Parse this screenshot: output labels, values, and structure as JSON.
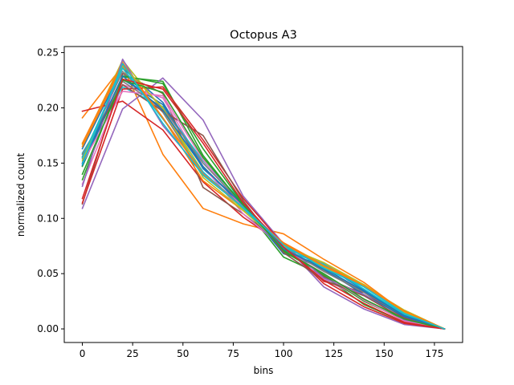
{
  "chart_data": {
    "type": "line",
    "title": "Octopus A3",
    "xlabel": "bins",
    "ylabel": "normalized count",
    "xlim": [
      -9,
      189
    ],
    "ylim": [
      -0.0123,
      0.2555
    ],
    "xticks": [
      0,
      25,
      50,
      75,
      100,
      125,
      150,
      175
    ],
    "xtick_labels": [
      "0",
      "25",
      "50",
      "75",
      "100",
      "125",
      "150",
      "175"
    ],
    "yticks": [
      0.0,
      0.05,
      0.1,
      0.15,
      0.2,
      0.25
    ],
    "ytick_labels": [
      "0.00",
      "0.05",
      "0.10",
      "0.15",
      "0.20",
      "0.25"
    ],
    "grid": false,
    "x": [
      0,
      20,
      40,
      60,
      80,
      100,
      120,
      140,
      160,
      180
    ],
    "series": [
      {
        "color": "#1f77b4",
        "values": [
          0.163,
          0.236,
          0.205,
          0.145,
          0.112,
          0.068,
          0.058,
          0.035,
          0.012,
          0.0
        ]
      },
      {
        "color": "#ff7f0e",
        "values": [
          0.191,
          0.238,
          0.158,
          0.109,
          0.095,
          0.086,
          0.063,
          0.042,
          0.015,
          0.0
        ]
      },
      {
        "color": "#2ca02c",
        "values": [
          0.147,
          0.228,
          0.224,
          0.157,
          0.111,
          0.065,
          0.048,
          0.022,
          0.006,
          0.0
        ]
      },
      {
        "color": "#d62728",
        "values": [
          0.197,
          0.206,
          0.18,
          0.133,
          0.101,
          0.076,
          0.043,
          0.033,
          0.01,
          0.0
        ]
      },
      {
        "color": "#9467bd",
        "values": [
          0.109,
          0.199,
          0.227,
          0.189,
          0.12,
          0.077,
          0.038,
          0.018,
          0.004,
          0.0
        ]
      },
      {
        "color": "#8c564b",
        "values": [
          0.113,
          0.231,
          0.213,
          0.128,
          0.104,
          0.076,
          0.047,
          0.031,
          0.008,
          0.0
        ]
      },
      {
        "color": "#e377c2",
        "values": [
          0.131,
          0.221,
          0.209,
          0.147,
          0.104,
          0.073,
          0.045,
          0.027,
          0.009,
          0.0
        ]
      },
      {
        "color": "#7f7f7f",
        "values": [
          0.154,
          0.233,
          0.196,
          0.139,
          0.111,
          0.073,
          0.053,
          0.034,
          0.011,
          0.0
        ]
      },
      {
        "color": "#bcbd22",
        "values": [
          0.167,
          0.243,
          0.198,
          0.142,
          0.108,
          0.075,
          0.056,
          0.039,
          0.017,
          0.0
        ]
      },
      {
        "color": "#17becf",
        "values": [
          0.159,
          0.219,
          0.201,
          0.152,
          0.114,
          0.071,
          0.059,
          0.038,
          0.014,
          0.0
        ]
      },
      {
        "color": "#1f77b4",
        "values": [
          0.148,
          0.226,
          0.203,
          0.147,
          0.11,
          0.07,
          0.054,
          0.031,
          0.011,
          0.0
        ]
      },
      {
        "color": "#ff7f0e",
        "values": [
          0.168,
          0.241,
          0.191,
          0.134,
          0.107,
          0.078,
          0.058,
          0.04,
          0.016,
          0.0
        ]
      },
      {
        "color": "#2ca02c",
        "values": [
          0.135,
          0.229,
          0.222,
          0.163,
          0.113,
          0.07,
          0.049,
          0.025,
          0.008,
          0.0
        ]
      },
      {
        "color": "#d62728",
        "values": [
          0.114,
          0.217,
          0.219,
          0.171,
          0.118,
          0.076,
          0.041,
          0.02,
          0.005,
          0.0
        ]
      },
      {
        "color": "#9467bd",
        "values": [
          0.129,
          0.244,
          0.184,
          0.141,
          0.111,
          0.077,
          0.046,
          0.031,
          0.008,
          0.0
        ]
      },
      {
        "color": "#8c564b",
        "values": [
          0.156,
          0.221,
          0.197,
          0.175,
          0.116,
          0.069,
          0.044,
          0.03,
          0.009,
          0.0
        ]
      },
      {
        "color": "#e377c2",
        "values": [
          0.15,
          0.215,
          0.211,
          0.153,
          0.109,
          0.072,
          0.05,
          0.026,
          0.007,
          0.0
        ]
      },
      {
        "color": "#7f7f7f",
        "values": [
          0.158,
          0.224,
          0.2,
          0.15,
          0.112,
          0.074,
          0.052,
          0.033,
          0.012,
          0.0
        ]
      },
      {
        "color": "#bcbd22",
        "values": [
          0.152,
          0.238,
          0.2,
          0.137,
          0.107,
          0.075,
          0.06,
          0.04,
          0.015,
          0.0
        ]
      },
      {
        "color": "#17becf",
        "values": [
          0.155,
          0.236,
          0.19,
          0.142,
          0.109,
          0.074,
          0.058,
          0.036,
          0.013,
          0.0
        ]
      },
      {
        "color": "#1f77b4",
        "values": [
          0.15,
          0.229,
          0.198,
          0.146,
          0.112,
          0.072,
          0.055,
          0.034,
          0.012,
          0.0
        ]
      },
      {
        "color": "#ff7f0e",
        "values": [
          0.165,
          0.239,
          0.191,
          0.14,
          0.11,
          0.077,
          0.057,
          0.039,
          0.016,
          0.0
        ]
      },
      {
        "color": "#2ca02c",
        "values": [
          0.14,
          0.225,
          0.214,
          0.155,
          0.112,
          0.071,
          0.05,
          0.027,
          0.009,
          0.0
        ]
      },
      {
        "color": "#d62728",
        "values": [
          0.118,
          0.226,
          0.217,
          0.168,
          0.114,
          0.074,
          0.044,
          0.023,
          0.006,
          0.0
        ]
      },
      {
        "color": "#17becf",
        "values": [
          0.149,
          0.24,
          0.186,
          0.139,
          0.11,
          0.076,
          0.055,
          0.038,
          0.014,
          0.0
        ]
      }
    ]
  }
}
